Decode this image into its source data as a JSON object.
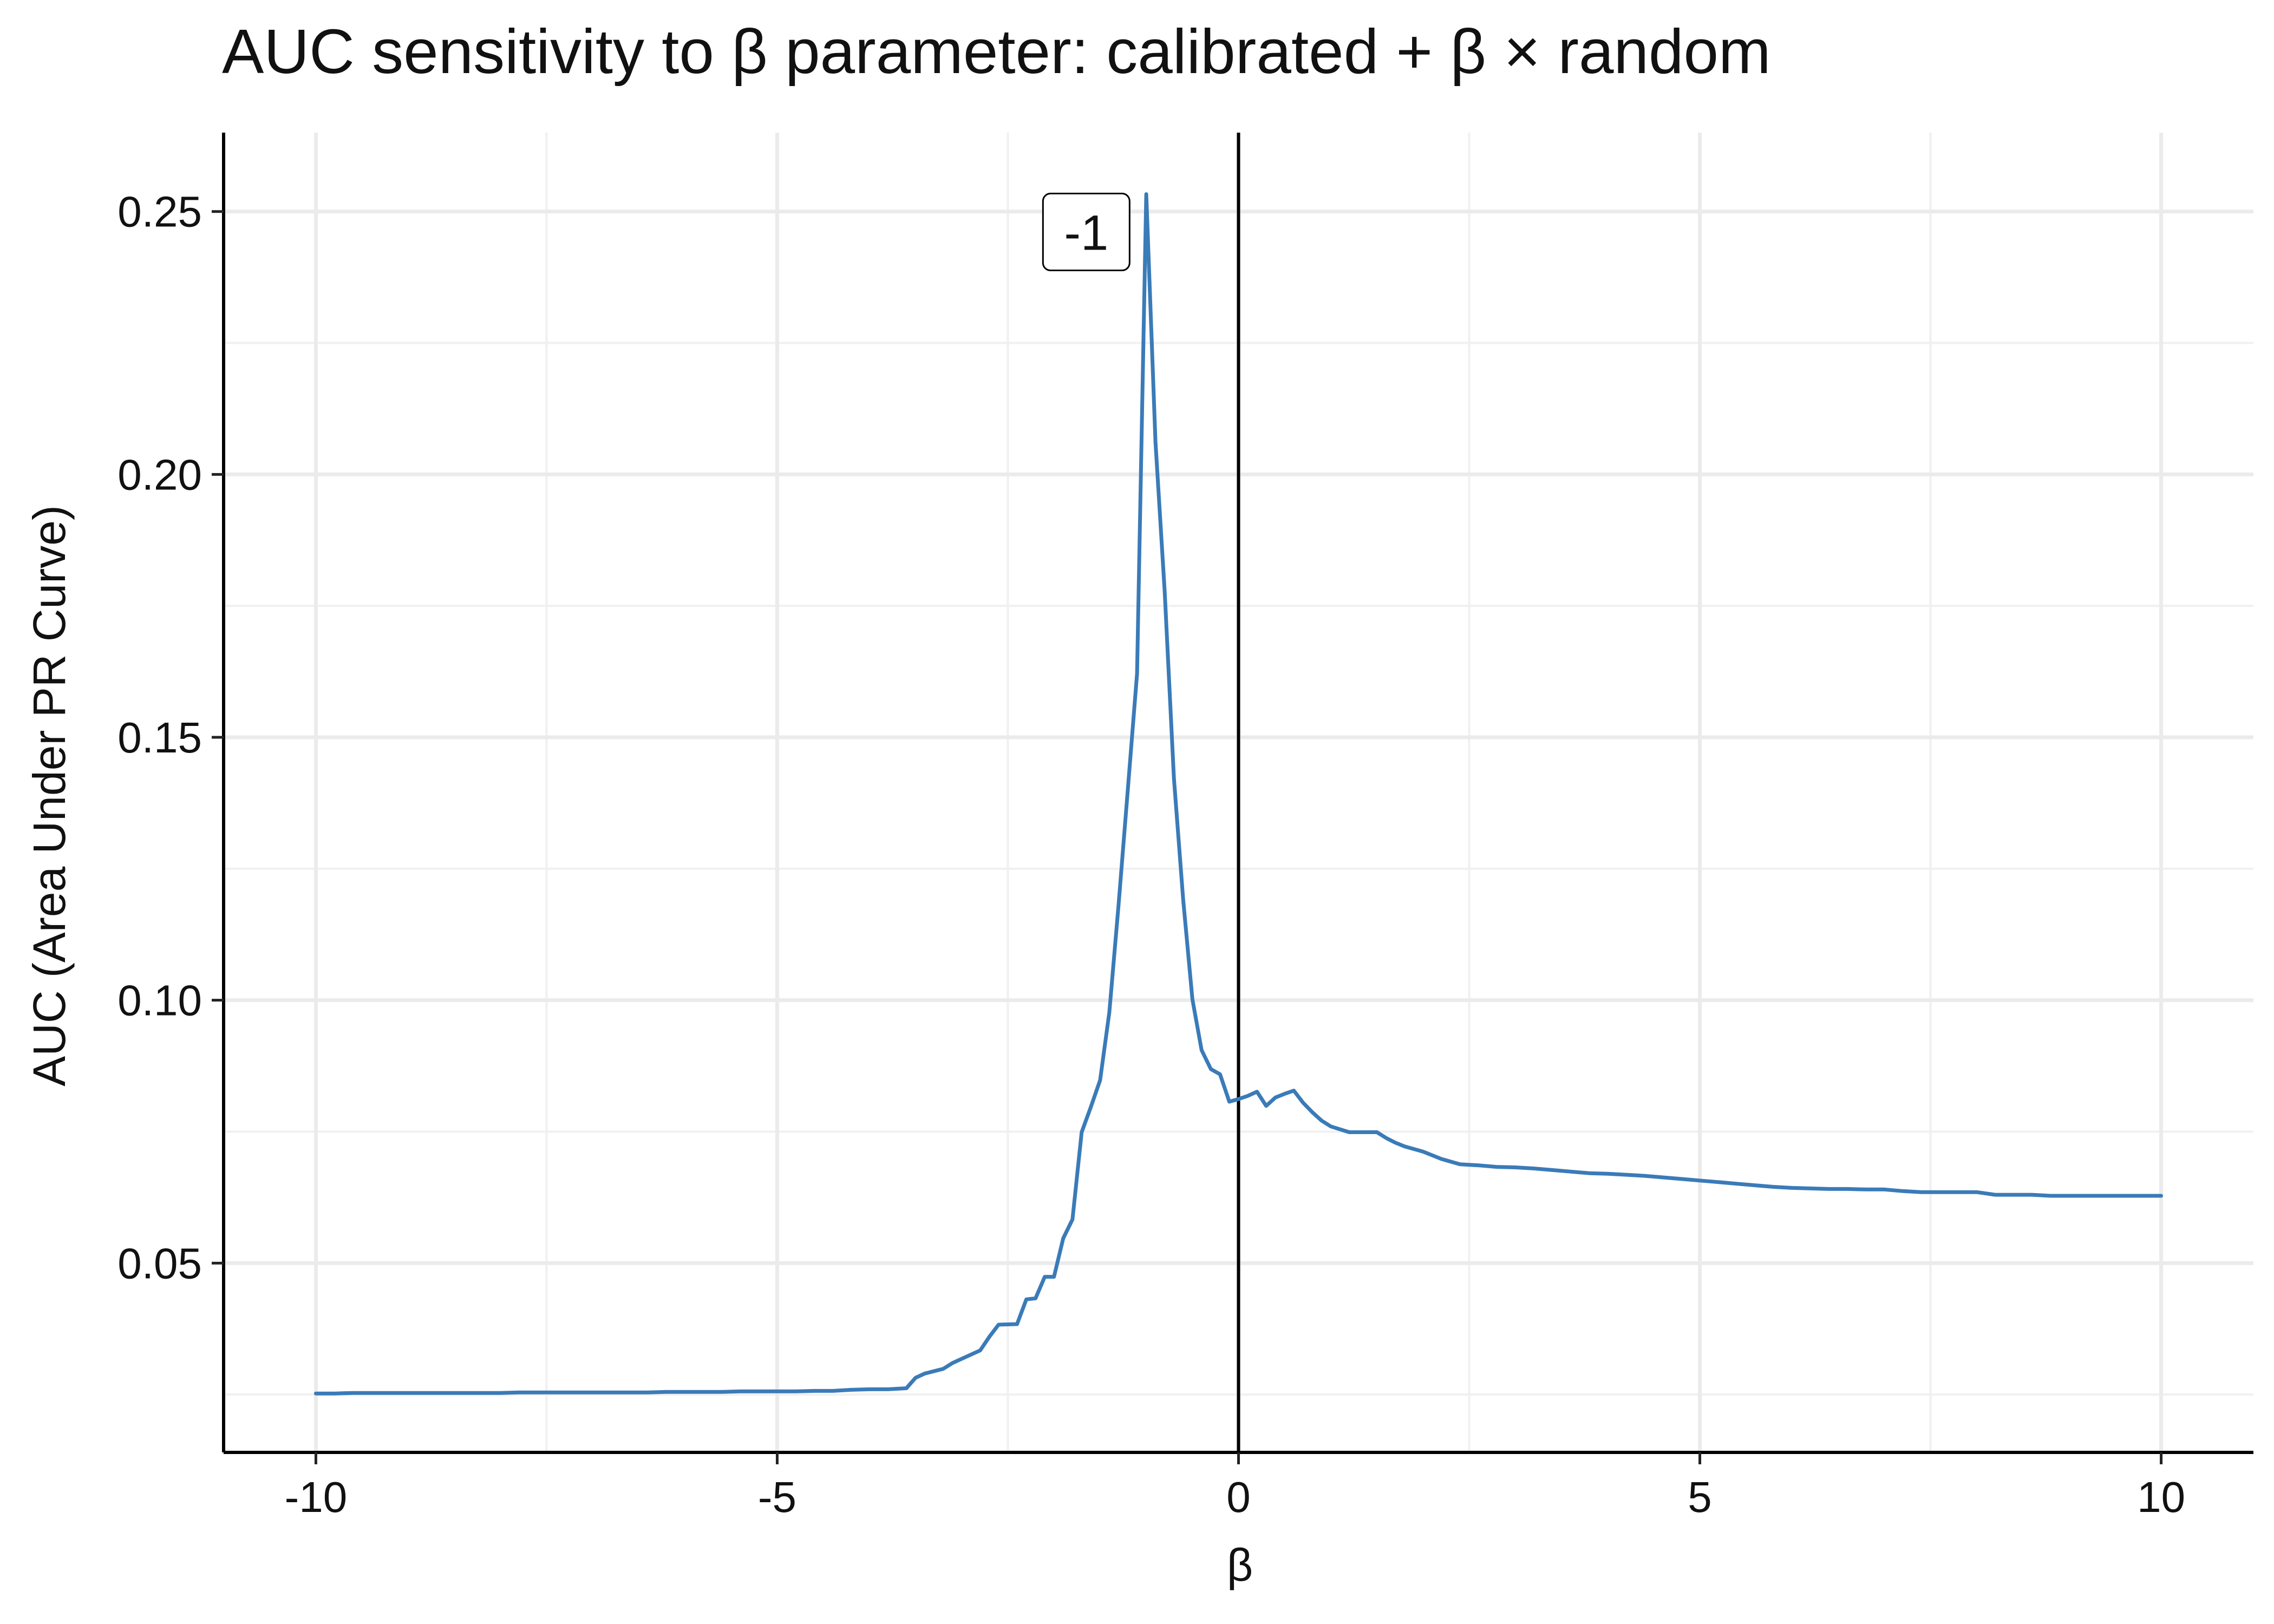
{
  "chart_data": {
    "type": "line",
    "title": "AUC sensitivity to β parameter: calibrated + β × random",
    "xlabel": "β",
    "ylabel": "AUC (Area Under PR Curve)",
    "xlim": [
      -11,
      11
    ],
    "ylim": [
      0.014,
      0.265
    ],
    "x_ticks": [
      -10,
      -5,
      0,
      5,
      10
    ],
    "x_tick_labels": [
      "-10",
      "-5",
      "0",
      "5",
      "10"
    ],
    "y_ticks": [
      0.05,
      0.1,
      0.15,
      0.2,
      0.25
    ],
    "y_tick_labels": [
      "0.05",
      "0.10",
      "0.15",
      "0.20",
      "0.25"
    ],
    "grid": true,
    "reference_line_x": 0,
    "annotation": {
      "text": "-1",
      "x": -1.65,
      "y": 0.246
    },
    "series": [
      {
        "color": "#3a7bb8",
        "x": [
          -10,
          -9.8,
          -9.6,
          -9.4,
          -9.2,
          -9.0,
          -8.8,
          -8.6,
          -8.4,
          -8.2,
          -8.0,
          -7.8,
          -7.6,
          -7.4,
          -7.2,
          -7.0,
          -6.8,
          -6.6,
          -6.4,
          -6.2,
          -6.0,
          -5.8,
          -5.6,
          -5.4,
          -5.2,
          -5.0,
          -4.8,
          -4.6,
          -4.4,
          -4.2,
          -4.0,
          -3.8,
          -3.6,
          -3.5,
          -3.4,
          -3.2,
          -3.1,
          -3.0,
          -2.8,
          -2.7,
          -2.6,
          -2.4,
          -2.3,
          -2.2,
          -2.1,
          -2.0,
          -1.9,
          -1.8,
          -1.7,
          -1.6,
          -1.5,
          -1.4,
          -1.3,
          -1.2,
          -1.1,
          -1.0,
          -0.9,
          -0.8,
          -0.7,
          -0.6,
          -0.5,
          -0.4,
          -0.3,
          -0.2,
          -0.1,
          0.0,
          0.1,
          0.2,
          0.3,
          0.4,
          0.5,
          0.6,
          0.7,
          0.8,
          0.9,
          1.0,
          1.2,
          1.4,
          1.5,
          1.6,
          1.7,
          1.8,
          2.0,
          2.2,
          2.4,
          2.6,
          2.8,
          3.0,
          3.2,
          3.4,
          3.6,
          3.8,
          4.0,
          4.2,
          4.4,
          4.6,
          4.8,
          5.0,
          5.2,
          5.4,
          5.6,
          5.8,
          6.0,
          6.2,
          6.4,
          6.6,
          6.8,
          7.0,
          7.2,
          7.4,
          7.6,
          7.8,
          8.0,
          8.2,
          8.4,
          8.6,
          8.8,
          9.0,
          9.2,
          9.4,
          9.6,
          9.8,
          10.0
        ],
        "y": [
          0.0252,
          0.0252,
          0.0253,
          0.0253,
          0.0253,
          0.0253,
          0.0253,
          0.0253,
          0.0253,
          0.0253,
          0.0253,
          0.0254,
          0.0254,
          0.0254,
          0.0254,
          0.0254,
          0.0254,
          0.0254,
          0.0254,
          0.0255,
          0.0255,
          0.0255,
          0.0255,
          0.0256,
          0.0256,
          0.0256,
          0.0256,
          0.0257,
          0.0257,
          0.0259,
          0.026,
          0.026,
          0.0262,
          0.0282,
          0.029,
          0.0299,
          0.031,
          0.0318,
          0.0334,
          0.036,
          0.0383,
          0.0384,
          0.0431,
          0.0433,
          0.0474,
          0.0474,
          0.0547,
          0.0583,
          0.0749,
          0.0797,
          0.0848,
          0.0977,
          0.1182,
          0.14,
          0.1621,
          0.2533,
          0.2062,
          0.1776,
          0.1422,
          0.1191,
          0.1002,
          0.0905,
          0.0869,
          0.0859,
          0.0807,
          0.0812,
          0.0818,
          0.0826,
          0.0799,
          0.0815,
          0.0822,
          0.0828,
          0.0805,
          0.0787,
          0.0771,
          0.076,
          0.0749,
          0.0749,
          0.0749,
          0.0738,
          0.0729,
          0.0722,
          0.0712,
          0.0698,
          0.0688,
          0.0686,
          0.0683,
          0.0682,
          0.068,
          0.0677,
          0.0674,
          0.0671,
          0.067,
          0.0668,
          0.0666,
          0.0663,
          0.066,
          0.0657,
          0.0654,
          0.0651,
          0.0648,
          0.0645,
          0.0643,
          0.0642,
          0.0641,
          0.0641,
          0.064,
          0.064,
          0.0637,
          0.0635,
          0.0635,
          0.0635,
          0.0635,
          0.063,
          0.063,
          0.063,
          0.0628,
          0.0628,
          0.0628,
          0.0628,
          0.0628,
          0.0628,
          0.0628
        ]
      }
    ]
  }
}
